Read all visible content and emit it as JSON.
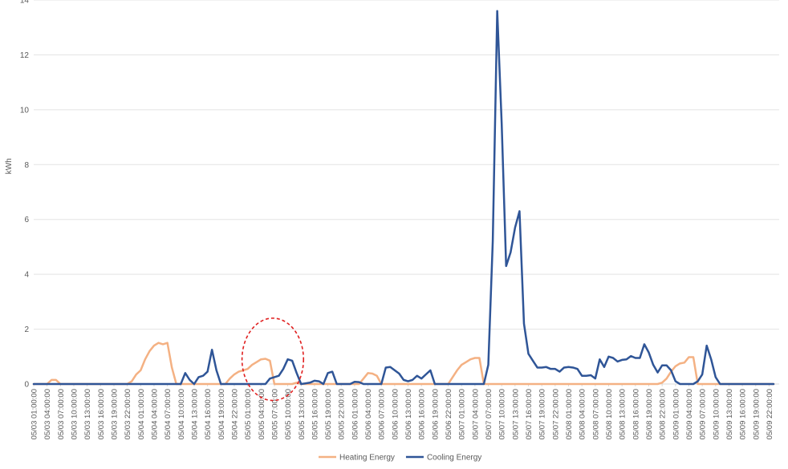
{
  "chart_data": {
    "type": "line",
    "title": "",
    "xlabel": "",
    "ylabel": "kWh",
    "ylim": [
      0,
      14
    ],
    "yticks": [
      0,
      2,
      4,
      6,
      8,
      10,
      12,
      14
    ],
    "grid": true,
    "legend_position": "bottom-center",
    "x_start": "05/03 01:00:00",
    "x_end": "05/09 23:00:00",
    "x_label_step_hours": 3,
    "x_tick_labels": [
      "05/03 01:00:00",
      "05/03 04:00:00",
      "05/03 07:00:00",
      "05/03 10:00:00",
      "05/03 13:00:00",
      "05/03 16:00:00",
      "05/03 19:00:00",
      "05/03 22:00:00",
      "05/04 01:00:00",
      "05/04 04:00:00",
      "05/04 07:00:00",
      "05/04 10:00:00",
      "05/04 13:00:00",
      "05/04 16:00:00",
      "05/04 19:00:00",
      "05/04 22:00:00",
      "05/05 01:00:00",
      "05/05 04:00:00",
      "05/05 07:00:00",
      "05/05 10:00:00",
      "05/05 13:00:00",
      "05/05 16:00:00",
      "05/05 19:00:00",
      "05/05 22:00:00",
      "05/06 01:00:00",
      "05/06 04:00:00",
      "05/06 07:00:00",
      "05/06 10:00:00",
      "05/06 13:00:00",
      "05/06 16:00:00",
      "05/06 19:00:00",
      "05/06 22:00:00",
      "05/07 01:00:00",
      "05/07 04:00:00",
      "05/07 07:00:00",
      "05/07 10:00:00",
      "05/07 13:00:00",
      "05/07 16:00:00",
      "05/07 19:00:00",
      "05/07 22:00:00",
      "05/08 01:00:00",
      "05/08 04:00:00",
      "05/08 07:00:00",
      "05/08 10:00:00",
      "05/08 13:00:00",
      "05/08 16:00:00",
      "05/08 19:00:00",
      "05/08 22:00:00",
      "05/09 01:00:00",
      "05/09 04:00:00",
      "05/09 07:00:00",
      "05/09 10:00:00",
      "05/09 13:00:00",
      "05/09 16:00:00",
      "05/09 19:00:00",
      "05/09 22:00:00"
    ],
    "series": [
      {
        "name": "Heating Energy",
        "color": "#F4B183",
        "points": [
          [
            "05/03 01:00:00",
            0
          ],
          [
            "05/03 04:00:00",
            0
          ],
          [
            "05/03 05:00:00",
            0.15
          ],
          [
            "05/03 06:00:00",
            0.15
          ],
          [
            "05/03 07:00:00",
            0
          ],
          [
            "05/03 22:00:00",
            0
          ],
          [
            "05/03 23:00:00",
            0.1
          ],
          [
            "05/04 00:00:00",
            0.35
          ],
          [
            "05/04 01:00:00",
            0.5
          ],
          [
            "05/04 02:00:00",
            0.9
          ],
          [
            "05/04 03:00:00",
            1.2
          ],
          [
            "05/04 04:00:00",
            1.4
          ],
          [
            "05/04 05:00:00",
            1.5
          ],
          [
            "05/04 06:00:00",
            1.45
          ],
          [
            "05/04 07:00:00",
            1.5
          ],
          [
            "05/04 08:00:00",
            0.6
          ],
          [
            "05/04 09:00:00",
            0
          ],
          [
            "05/04 20:00:00",
            0
          ],
          [
            "05/04 21:00:00",
            0.2
          ],
          [
            "05/04 22:00:00",
            0.35
          ],
          [
            "05/04 23:00:00",
            0.45
          ],
          [
            "05/05 00:00:00",
            0.5
          ],
          [
            "05/05 01:00:00",
            0.55
          ],
          [
            "05/05 02:00:00",
            0.7
          ],
          [
            "05/05 03:00:00",
            0.8
          ],
          [
            "05/05 04:00:00",
            0.9
          ],
          [
            "05/05 05:00:00",
            0.92
          ],
          [
            "05/05 06:00:00",
            0.85
          ],
          [
            "05/05 07:00:00",
            0
          ],
          [
            "05/05 11:00:00",
            0
          ],
          [
            "05/05 12:00:00",
            0.05
          ],
          [
            "05/05 13:00:00",
            0
          ],
          [
            "05/06 02:00:00",
            0
          ],
          [
            "05/06 03:00:00",
            0.2
          ],
          [
            "05/06 04:00:00",
            0.4
          ],
          [
            "05/06 05:00:00",
            0.38
          ],
          [
            "05/06 06:00:00",
            0.3
          ],
          [
            "05/06 07:00:00",
            0
          ],
          [
            "05/06 22:00:00",
            0
          ],
          [
            "05/06 23:00:00",
            0.25
          ],
          [
            "05/07 00:00:00",
            0.5
          ],
          [
            "05/07 01:00:00",
            0.7
          ],
          [
            "05/07 02:00:00",
            0.8
          ],
          [
            "05/07 03:00:00",
            0.9
          ],
          [
            "05/07 04:00:00",
            0.95
          ],
          [
            "05/07 05:00:00",
            0.95
          ],
          [
            "05/07 06:00:00",
            0
          ],
          [
            "05/08 21:00:00",
            0
          ],
          [
            "05/08 22:00:00",
            0.05
          ],
          [
            "05/08 23:00:00",
            0.2
          ],
          [
            "05/09 00:00:00",
            0.45
          ],
          [
            "05/09 01:00:00",
            0.65
          ],
          [
            "05/09 02:00:00",
            0.75
          ],
          [
            "05/09 03:00:00",
            0.78
          ],
          [
            "05/09 04:00:00",
            0.98
          ],
          [
            "05/09 05:00:00",
            0.98
          ],
          [
            "05/09 06:00:00",
            0
          ],
          [
            "05/09 23:00:00",
            0
          ]
        ]
      },
      {
        "name": "Cooling Energy",
        "color": "#2F5597",
        "points": [
          [
            "05/03 01:00:00",
            0
          ],
          [
            "05/04 09:00:00",
            0
          ],
          [
            "05/04 10:00:00",
            0
          ],
          [
            "05/04 11:00:00",
            0.4
          ],
          [
            "05/04 12:00:00",
            0.15
          ],
          [
            "05/04 13:00:00",
            0
          ],
          [
            "05/04 14:00:00",
            0.25
          ],
          [
            "05/04 15:00:00",
            0.3
          ],
          [
            "05/04 16:00:00",
            0.45
          ],
          [
            "05/04 17:00:00",
            1.25
          ],
          [
            "05/04 18:00:00",
            0.5
          ],
          [
            "05/04 19:00:00",
            0
          ],
          [
            "05/05 05:00:00",
            0
          ],
          [
            "05/05 06:00:00",
            0.2
          ],
          [
            "05/05 07:00:00",
            0.25
          ],
          [
            "05/05 08:00:00",
            0.3
          ],
          [
            "05/05 09:00:00",
            0.55
          ],
          [
            "05/05 10:00:00",
            0.9
          ],
          [
            "05/05 11:00:00",
            0.85
          ],
          [
            "05/05 12:00:00",
            0.4
          ],
          [
            "05/05 13:00:00",
            0
          ],
          [
            "05/05 15:00:00",
            0.05
          ],
          [
            "05/05 16:00:00",
            0.12
          ],
          [
            "05/05 17:00:00",
            0.1
          ],
          [
            "05/05 18:00:00",
            0
          ],
          [
            "05/05 19:00:00",
            0.4
          ],
          [
            "05/05 20:00:00",
            0.45
          ],
          [
            "05/05 21:00:00",
            0
          ],
          [
            "05/06 00:00:00",
            0
          ],
          [
            "05/06 01:00:00",
            0.08
          ],
          [
            "05/06 02:00:00",
            0.07
          ],
          [
            "05/06 03:00:00",
            0
          ],
          [
            "05/06 07:00:00",
            0
          ],
          [
            "05/06 08:00:00",
            0.6
          ],
          [
            "05/06 09:00:00",
            0.62
          ],
          [
            "05/06 10:00:00",
            0.5
          ],
          [
            "05/06 11:00:00",
            0.38
          ],
          [
            "05/06 12:00:00",
            0.15
          ],
          [
            "05/06 13:00:00",
            0.1
          ],
          [
            "05/06 14:00:00",
            0.15
          ],
          [
            "05/06 15:00:00",
            0.3
          ],
          [
            "05/06 16:00:00",
            0.2
          ],
          [
            "05/06 17:00:00",
            0.35
          ],
          [
            "05/06 18:00:00",
            0.5
          ],
          [
            "05/06 19:00:00",
            0
          ],
          [
            "05/07 06:00:00",
            0
          ],
          [
            "05/07 07:00:00",
            0.7
          ],
          [
            "05/07 08:00:00",
            5.2
          ],
          [
            "05/07 09:00:00",
            13.6
          ],
          [
            "05/07 10:00:00",
            9.5
          ],
          [
            "05/07 11:00:00",
            4.3
          ],
          [
            "05/07 12:00:00",
            4.8
          ],
          [
            "05/07 13:00:00",
            5.7
          ],
          [
            "05/07 14:00:00",
            6.3
          ],
          [
            "05/07 15:00:00",
            2.2
          ],
          [
            "05/07 16:00:00",
            1.1
          ],
          [
            "05/07 17:00:00",
            0.85
          ],
          [
            "05/07 18:00:00",
            0.6
          ],
          [
            "05/07 19:00:00",
            0.6
          ],
          [
            "05/07 20:00:00",
            0.62
          ],
          [
            "05/07 21:00:00",
            0.55
          ],
          [
            "05/07 22:00:00",
            0.55
          ],
          [
            "05/07 23:00:00",
            0.45
          ],
          [
            "05/08 00:00:00",
            0.6
          ],
          [
            "05/08 01:00:00",
            0.62
          ],
          [
            "05/08 02:00:00",
            0.6
          ],
          [
            "05/08 03:00:00",
            0.55
          ],
          [
            "05/08 04:00:00",
            0.3
          ],
          [
            "05/08 05:00:00",
            0.3
          ],
          [
            "05/08 06:00:00",
            0.32
          ],
          [
            "05/08 07:00:00",
            0.2
          ],
          [
            "05/08 08:00:00",
            0.9
          ],
          [
            "05/08 09:00:00",
            0.62
          ],
          [
            "05/08 10:00:00",
            1.0
          ],
          [
            "05/08 11:00:00",
            0.95
          ],
          [
            "05/08 12:00:00",
            0.82
          ],
          [
            "05/08 13:00:00",
            0.88
          ],
          [
            "05/08 14:00:00",
            0.9
          ],
          [
            "05/08 15:00:00",
            1.02
          ],
          [
            "05/08 16:00:00",
            0.95
          ],
          [
            "05/08 17:00:00",
            0.95
          ],
          [
            "05/08 18:00:00",
            1.45
          ],
          [
            "05/08 19:00:00",
            1.15
          ],
          [
            "05/08 20:00:00",
            0.7
          ],
          [
            "05/08 21:00:00",
            0.42
          ],
          [
            "05/08 22:00:00",
            0.68
          ],
          [
            "05/08 23:00:00",
            0.68
          ],
          [
            "05/09 00:00:00",
            0.5
          ],
          [
            "05/09 01:00:00",
            0.1
          ],
          [
            "05/09 02:00:00",
            0
          ],
          [
            "05/09 05:00:00",
            0
          ],
          [
            "05/09 06:00:00",
            0.1
          ],
          [
            "05/09 07:00:00",
            0.35
          ],
          [
            "05/09 08:00:00",
            1.4
          ],
          [
            "05/09 09:00:00",
            0.9
          ],
          [
            "05/09 10:00:00",
            0.25
          ],
          [
            "05/09 11:00:00",
            0
          ],
          [
            "05/09 23:00:00",
            0
          ]
        ]
      }
    ],
    "annotations": [
      {
        "type": "dashed-ellipse",
        "color": "#E02020",
        "x": "05/05 07:00:00",
        "y": 0.9,
        "x_span_hours": 3,
        "y_span": 3
      }
    ]
  }
}
